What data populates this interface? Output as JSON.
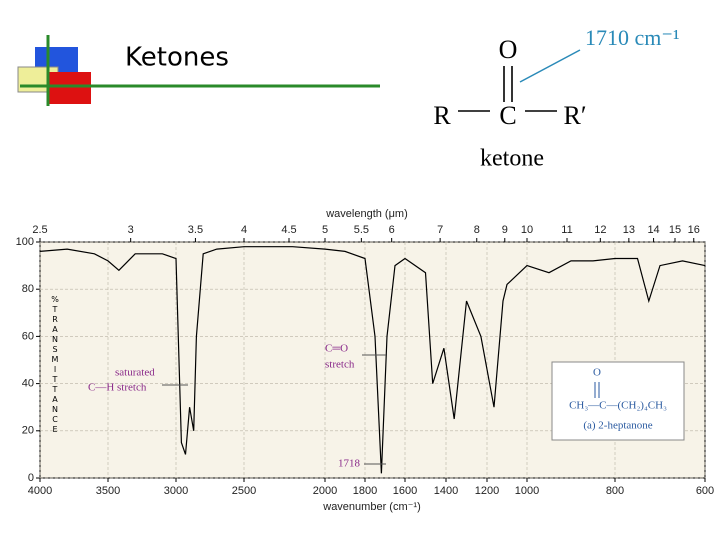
{
  "slide": {
    "title": "Ketones",
    "peak_label": "1710 cm⁻¹",
    "structure": {
      "oxygen": "O",
      "left": "R",
      "center": "C",
      "right": "R′",
      "name": "ketone"
    }
  },
  "chart_data": {
    "type": "line",
    "x_label": "wavenumber (cm⁻¹)",
    "x2_label": "wavelength (μm)",
    "y_label": "%TRANSMITTANCE",
    "x": [
      4000,
      3800,
      3600,
      3500,
      3420,
      3300,
      3100,
      3000,
      2960,
      2930,
      2900,
      2870,
      2850,
      2800,
      2700,
      2500,
      2200,
      2000,
      1900,
      1800,
      1750,
      1718,
      1690,
      1650,
      1600,
      1500,
      1465,
      1410,
      1360,
      1300,
      1230,
      1165,
      1120,
      1100,
      1000,
      950,
      900,
      850,
      800,
      750,
      725,
      700,
      650,
      600
    ],
    "values": [
      96,
      97,
      95,
      92,
      88,
      95,
      95,
      93,
      15,
      10,
      30,
      20,
      60,
      95,
      97,
      98,
      98,
      97,
      96,
      93,
      60,
      2,
      60,
      90,
      93,
      87,
      40,
      55,
      25,
      75,
      60,
      30,
      75,
      82,
      90,
      87,
      92,
      92,
      93,
      93,
      75,
      90,
      92,
      90
    ],
    "color": "#000000",
    "xlim": [
      4000,
      600
    ],
    "ylim": [
      0,
      100
    ],
    "xticks": [
      4000,
      3500,
      3000,
      2500,
      2000,
      1800,
      1600,
      1400,
      1200,
      1000,
      800,
      600
    ],
    "x2ticks": [
      2.5,
      3,
      3.5,
      4,
      4.5,
      5,
      5.5,
      6,
      7,
      8,
      9,
      10,
      11,
      12,
      13,
      14,
      15,
      16
    ],
    "yticks": [
      0,
      20,
      40,
      60,
      80,
      100
    ],
    "grid": true,
    "annotations": [
      "saturated",
      "C—H  stretch",
      "C═O",
      "stretch",
      "1718"
    ],
    "inset": {
      "oxygen": "O",
      "formula": "CH₃—C—(CH₂)₄CH₃",
      "caption": "(a) 2-heptanone"
    }
  }
}
